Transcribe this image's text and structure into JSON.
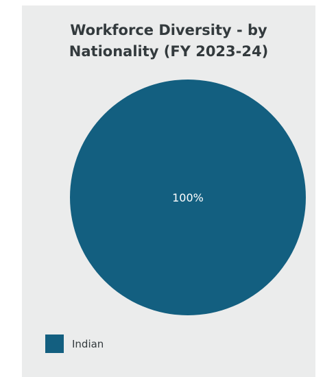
{
  "chart_data": {
    "type": "pie",
    "title_lines": [
      "Workforce Diversity - by",
      "Nationality (FY 2023-24)"
    ],
    "categories": [
      "Indian"
    ],
    "values": [
      100
    ],
    "data_labels": [
      "100%"
    ],
    "colors": [
      "#135f80"
    ],
    "legend_position": "bottom-left"
  },
  "colors": {
    "panel_background": "#ebecec",
    "slice": "#135f80",
    "text": "#333a3d",
    "slice_label": "#ffffff"
  }
}
